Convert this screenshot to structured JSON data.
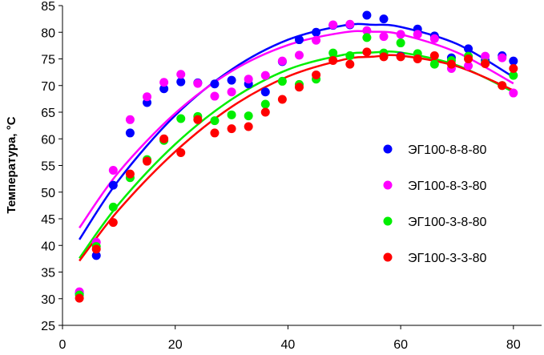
{
  "chart_data": {
    "type": "scatter",
    "title": "",
    "xlabel": "",
    "ylabel": "Температура, °С",
    "xlim": [
      0,
      85
    ],
    "ylim": [
      25,
      85
    ],
    "xticks": [
      0,
      20,
      40,
      60,
      80
    ],
    "yticks": [
      25,
      30,
      35,
      40,
      45,
      50,
      55,
      60,
      65,
      70,
      75,
      80,
      85
    ],
    "grid": false,
    "legend_position": "right",
    "series": [
      {
        "name": "ЭГ100-8-8-80",
        "color": "#0000ff",
        "x": [
          3,
          6,
          9,
          12,
          15,
          18,
          21,
          24,
          27,
          30,
          33,
          36,
          39,
          42,
          45,
          48,
          51,
          54,
          57,
          60,
          63,
          66,
          69,
          72,
          75,
          78,
          80
        ],
        "y": [
          31.0,
          38.1,
          51.3,
          61.1,
          66.8,
          69.4,
          70.7,
          70.5,
          70.3,
          71.0,
          70.3,
          68.8,
          74.5,
          78.6,
          80.0,
          81.3,
          81.4,
          83.2,
          82.5,
          75.5,
          80.6,
          79.3,
          75.2,
          76.9,
          74.7,
          75.6,
          74.6
        ],
        "trend_x": [
          3,
          10,
          20,
          30,
          40,
          50,
          55,
          60,
          70,
          80
        ],
        "trend_y": [
          41.1,
          52.3,
          64.4,
          73.0,
          78.6,
          81.3,
          81.4,
          81.0,
          77.8,
          71.6
        ]
      },
      {
        "name": "ЭГ100-8-3-80",
        "color": "#ff00ff",
        "x": [
          3,
          6,
          9,
          12,
          15,
          18,
          21,
          24,
          27,
          30,
          33,
          36,
          39,
          42,
          45,
          48,
          51,
          54,
          57,
          60,
          63,
          66,
          69,
          72,
          75,
          78,
          80
        ],
        "y": [
          31.3,
          40.6,
          54.1,
          63.6,
          67.9,
          70.6,
          72.1,
          70.4,
          68.0,
          68.8,
          71.2,
          71.9,
          74.6,
          75.7,
          78.5,
          81.4,
          81.5,
          80.3,
          79.2,
          79.6,
          79.6,
          78.8,
          73.2,
          73.7,
          75.5,
          75.2,
          68.6
        ],
        "trend_x": [
          3,
          10,
          20,
          30,
          40,
          50,
          55,
          60,
          70,
          80
        ],
        "trend_y": [
          43.3,
          53.8,
          64.8,
          72.7,
          77.6,
          80.0,
          80.1,
          79.6,
          76.2,
          70.4
        ]
      },
      {
        "name": "ЭГ100-3-8-80",
        "color": "#00ee00",
        "x": [
          3,
          6,
          9,
          12,
          15,
          18,
          21,
          24,
          27,
          30,
          33,
          36,
          39,
          42,
          45,
          48,
          51,
          54,
          57,
          60,
          63,
          66,
          69,
          72,
          75,
          78,
          80
        ],
        "y": [
          30.7,
          39.8,
          47.2,
          52.7,
          56.1,
          59.7,
          63.8,
          64.2,
          63.4,
          64.5,
          64.3,
          66.5,
          70.8,
          70.2,
          71.2,
          76.1,
          75.6,
          79.0,
          76.1,
          78.0,
          76.0,
          74.0,
          74.7,
          75.5,
          74.2,
          70.0,
          71.9
        ],
        "trend_x": [
          3,
          10,
          20,
          30,
          40,
          50,
          55,
          60,
          70,
          80
        ],
        "trend_y": [
          37.6,
          47.8,
          59.0,
          67.4,
          73.0,
          75.8,
          76.2,
          76.2,
          73.8,
          68.8
        ]
      },
      {
        "name": "ЭГ100-3-3-80",
        "color": "#ff0000",
        "x": [
          3,
          6,
          9,
          12,
          15,
          18,
          21,
          24,
          27,
          30,
          33,
          36,
          39,
          42,
          45,
          48,
          51,
          54,
          57,
          60,
          63,
          66,
          69,
          72,
          75,
          78,
          80
        ],
        "y": [
          30.1,
          39.3,
          44.3,
          53.4,
          55.8,
          60.0,
          57.4,
          63.6,
          61.1,
          61.9,
          62.3,
          65.0,
          67.4,
          69.7,
          72.0,
          74.7,
          74.0,
          76.3,
          75.4,
          75.4,
          75.0,
          75.6,
          74.0,
          75.0,
          74.1,
          70.0,
          73.2
        ],
        "trend_x": [
          3,
          10,
          20,
          30,
          40,
          50,
          55,
          60,
          70,
          80
        ],
        "trend_y": [
          37.1,
          46.7,
          57.6,
          66.0,
          71.7,
          74.9,
          75.4,
          75.6,
          73.6,
          69.1
        ]
      }
    ]
  }
}
